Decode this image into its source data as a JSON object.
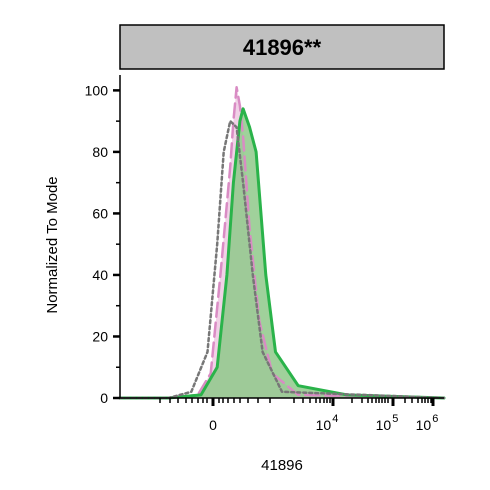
{
  "chart_data": {
    "type": "area",
    "title": "41896**",
    "xlabel": "41896",
    "ylabel": "Normalized To Mode",
    "ylim": [
      0,
      100
    ],
    "y_ticks": [
      0,
      20,
      40,
      60,
      80,
      100
    ],
    "x_tick_labels": [
      {
        "base": "0",
        "exp": ""
      },
      {
        "base": "10",
        "exp": "4"
      },
      {
        "base": "10",
        "exp": "5"
      },
      {
        "base": "10",
        "exp": "6"
      }
    ],
    "series": [
      {
        "style": "solid",
        "color": "#2ab34a",
        "fill": "#8fc98a",
        "x": [
          0,
          15,
          25,
          30,
          33,
          35,
          37,
          38,
          40,
          42,
          45,
          48,
          55,
          70,
          100
        ],
        "y": [
          0,
          0,
          1,
          10,
          40,
          70,
          90,
          94,
          88,
          80,
          40,
          15,
          4,
          1,
          0
        ]
      },
      {
        "style": "dashed",
        "color": "#d98cc4",
        "fill": "#ecc6e0",
        "x": [
          0,
          15,
          24,
          28,
          31,
          34,
          35,
          36,
          37,
          38,
          40,
          43,
          47,
          55,
          100
        ],
        "y": [
          0,
          0,
          1,
          8,
          40,
          75,
          90,
          101,
          95,
          85,
          55,
          25,
          8,
          1,
          0
        ]
      },
      {
        "style": "dotted",
        "color": "#777777",
        "fill": "none",
        "x": [
          0,
          15,
          22,
          27,
          30,
          32,
          34,
          36,
          38,
          41,
          44,
          50,
          100
        ],
        "y": [
          0,
          0,
          2,
          15,
          50,
          80,
          90,
          88,
          70,
          40,
          15,
          2,
          0
        ]
      }
    ]
  }
}
